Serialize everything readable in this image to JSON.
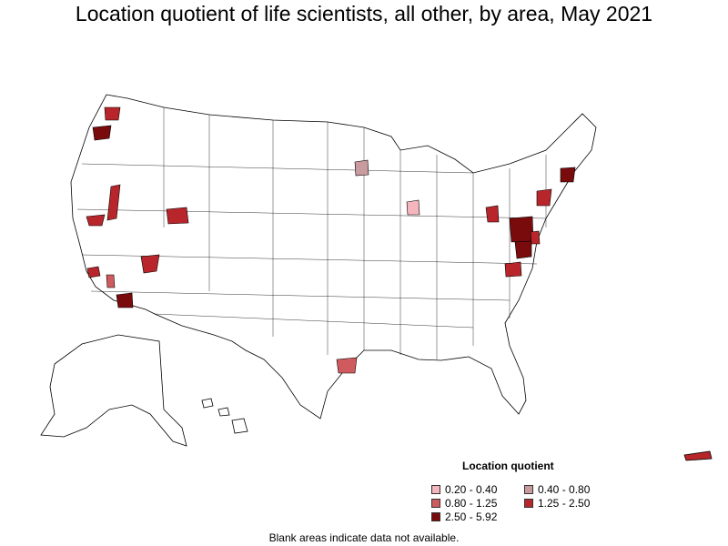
{
  "title": "Location quotient of life scientists, all other, by area, May 2021",
  "legend": {
    "title": "Location quotient",
    "items": [
      {
        "label": "0.20 - 0.40",
        "color": "#f4b6bc"
      },
      {
        "label": "0.40 - 0.80",
        "color": "#c99a9e"
      },
      {
        "label": "0.80 - 1.25",
        "color": "#d05b5f"
      },
      {
        "label": "1.25 - 2.50",
        "color": "#b8262b"
      },
      {
        "label": "2.50 - 5.92",
        "color": "#7a0b0d"
      }
    ]
  },
  "footnote": "Blank areas indicate data not available.",
  "colors": {
    "border": "#000000",
    "no_data": "#ffffff"
  }
}
